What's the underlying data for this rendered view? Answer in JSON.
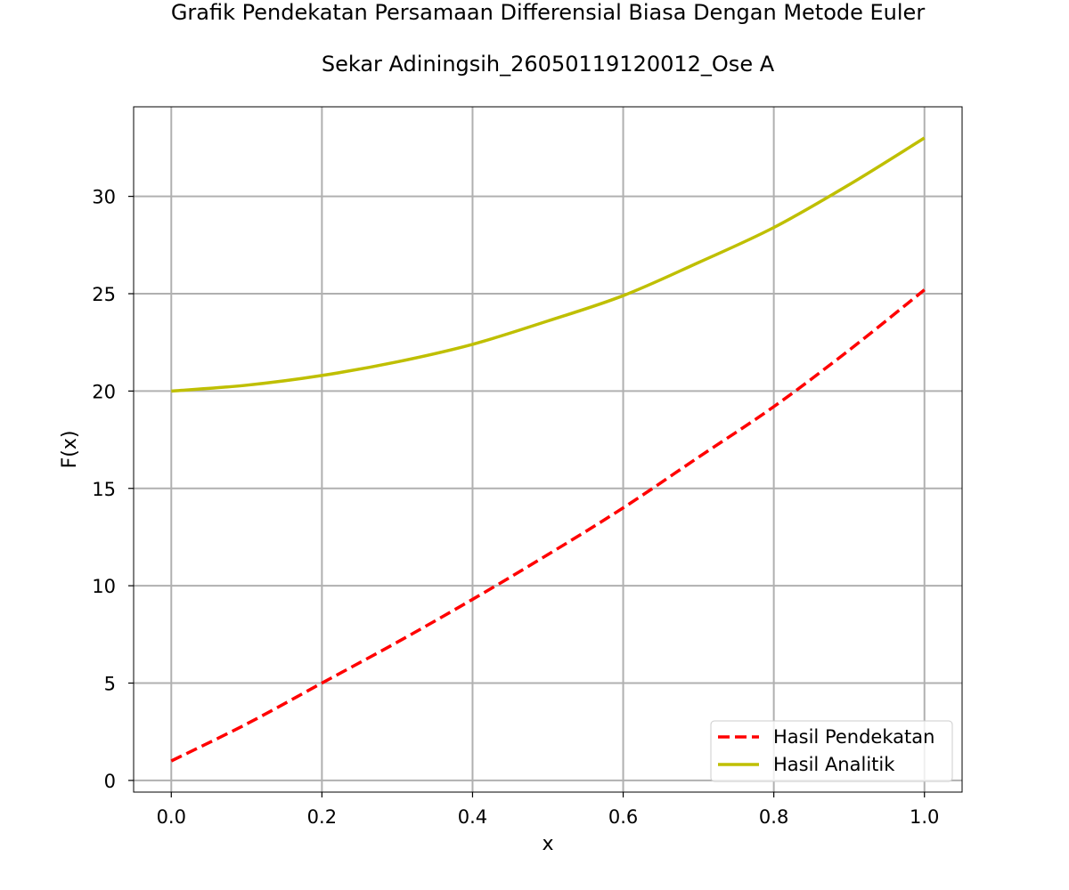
{
  "chart_data": {
    "type": "line",
    "title_lines": [
      "Grafik Pendekatan Persamaan Differensial Biasa Dengan Metode Euler",
      "Sekar Adiningsih_26050119120012_Ose A"
    ],
    "xlabel": "x",
    "ylabel": "F(x)",
    "xlim": [
      -0.05,
      1.05
    ],
    "ylim": [
      -0.6,
      34.6
    ],
    "x_ticks": [
      0.0,
      0.2,
      0.4,
      0.6,
      0.8,
      1.0
    ],
    "x_tick_labels": [
      "0.0",
      "0.2",
      "0.4",
      "0.6",
      "0.8",
      "1.0"
    ],
    "y_ticks": [
      0,
      5,
      10,
      15,
      20,
      25,
      30
    ],
    "y_tick_labels": [
      "0",
      "5",
      "10",
      "15",
      "20",
      "25",
      "30"
    ],
    "grid": true,
    "legend_position": "bottom-right",
    "series": [
      {
        "name": "Hasil Pendekatan",
        "color": "#ff0000",
        "style": "dashed",
        "x": [
          0.0,
          0.1,
          0.2,
          0.3,
          0.4,
          0.5,
          0.6,
          0.7,
          0.8,
          0.9,
          1.0
        ],
        "y": [
          1.0,
          2.9,
          5.0,
          7.1,
          9.3,
          11.6,
          14.0,
          16.6,
          19.2,
          22.1,
          25.2
        ]
      },
      {
        "name": "Hasil Analitik",
        "color": "#bfbf00",
        "style": "solid",
        "x": [
          0.0,
          0.1,
          0.2,
          0.3,
          0.4,
          0.5,
          0.6,
          0.7,
          0.8,
          0.9,
          1.0
        ],
        "y": [
          20.0,
          20.3,
          20.8,
          21.5,
          22.4,
          23.6,
          24.9,
          26.6,
          28.4,
          30.6,
          33.0
        ]
      }
    ]
  }
}
